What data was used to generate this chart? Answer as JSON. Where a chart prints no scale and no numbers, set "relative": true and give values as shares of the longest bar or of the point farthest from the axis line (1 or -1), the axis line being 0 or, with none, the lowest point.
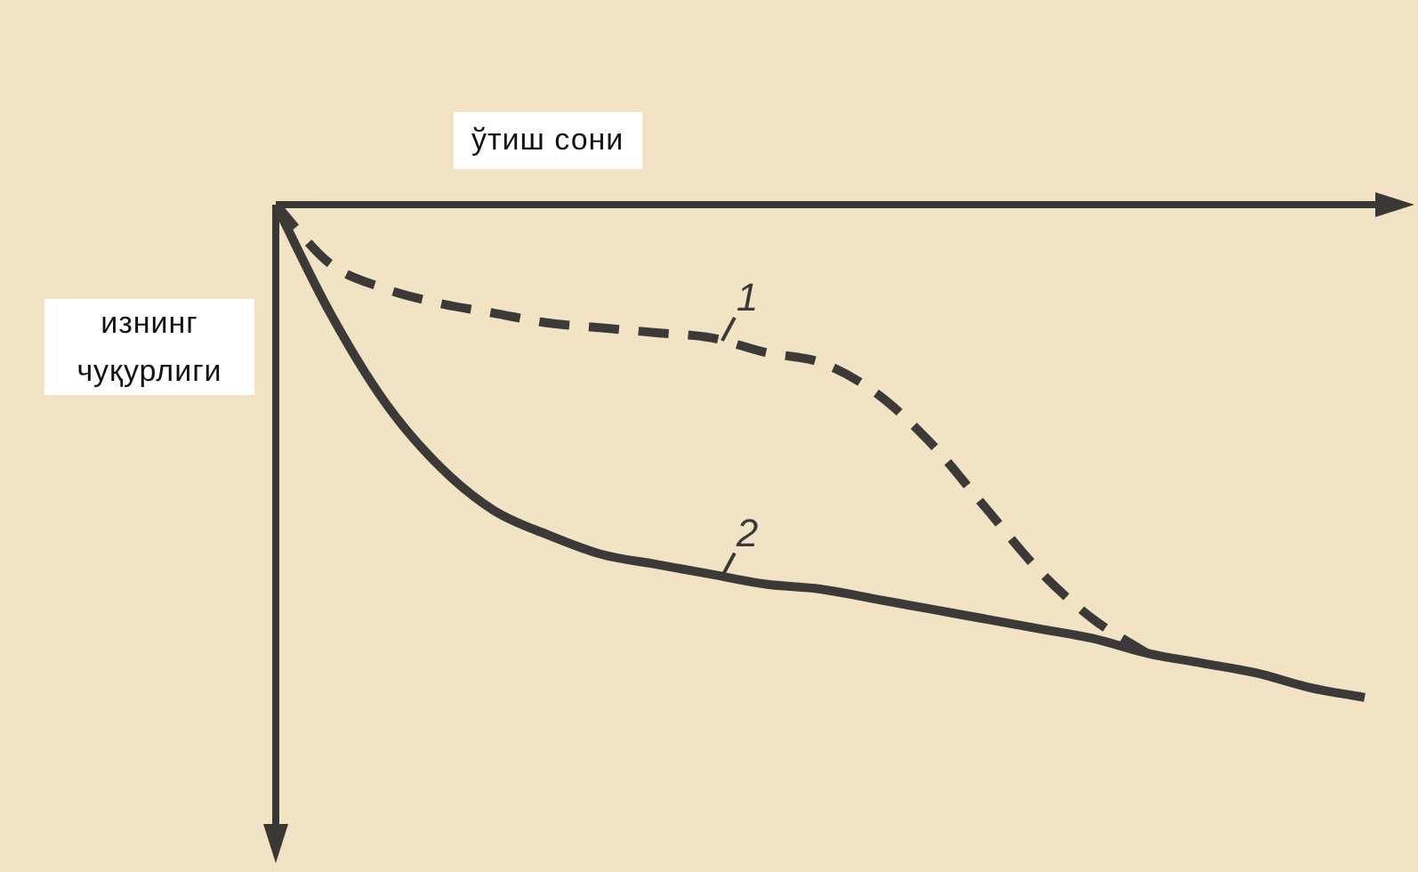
{
  "chart_data": {
    "type": "line",
    "xlabel": "ўтиш сони",
    "ylabel": "изнинг чуқурлиги",
    "relative": true,
    "legend": false,
    "marker": "none",
    "categories": [
      null,
      null,
      null,
      null,
      null,
      null,
      null,
      null,
      null,
      null,
      null,
      null,
      null,
      null,
      null,
      null,
      null,
      null,
      null,
      null,
      null
    ],
    "series": [
      {
        "name": "1",
        "color": "#3c3a38",
        "line_style": "dashed",
        "values": [
          0,
          -0.12,
          -0.17,
          -0.2,
          -0.22,
          -0.24,
          -0.25,
          -0.26,
          -0.27,
          -0.3,
          -0.32,
          -0.38,
          -0.48,
          -0.61,
          -0.74,
          -0.84,
          -0.91,
          null,
          null,
          null,
          null
        ]
      },
      {
        "name": "2",
        "color": "#3c3a38",
        "line_style": "solid",
        "values": [
          0,
          -0.22,
          -0.4,
          -0.53,
          -0.62,
          -0.67,
          -0.71,
          -0.73,
          -0.75,
          -0.77,
          -0.78,
          -0.8,
          -0.82,
          -0.84,
          -0.86,
          -0.88,
          -0.91,
          -0.93,
          -0.95,
          -0.98,
          -1
        ]
      }
    ]
  }
}
